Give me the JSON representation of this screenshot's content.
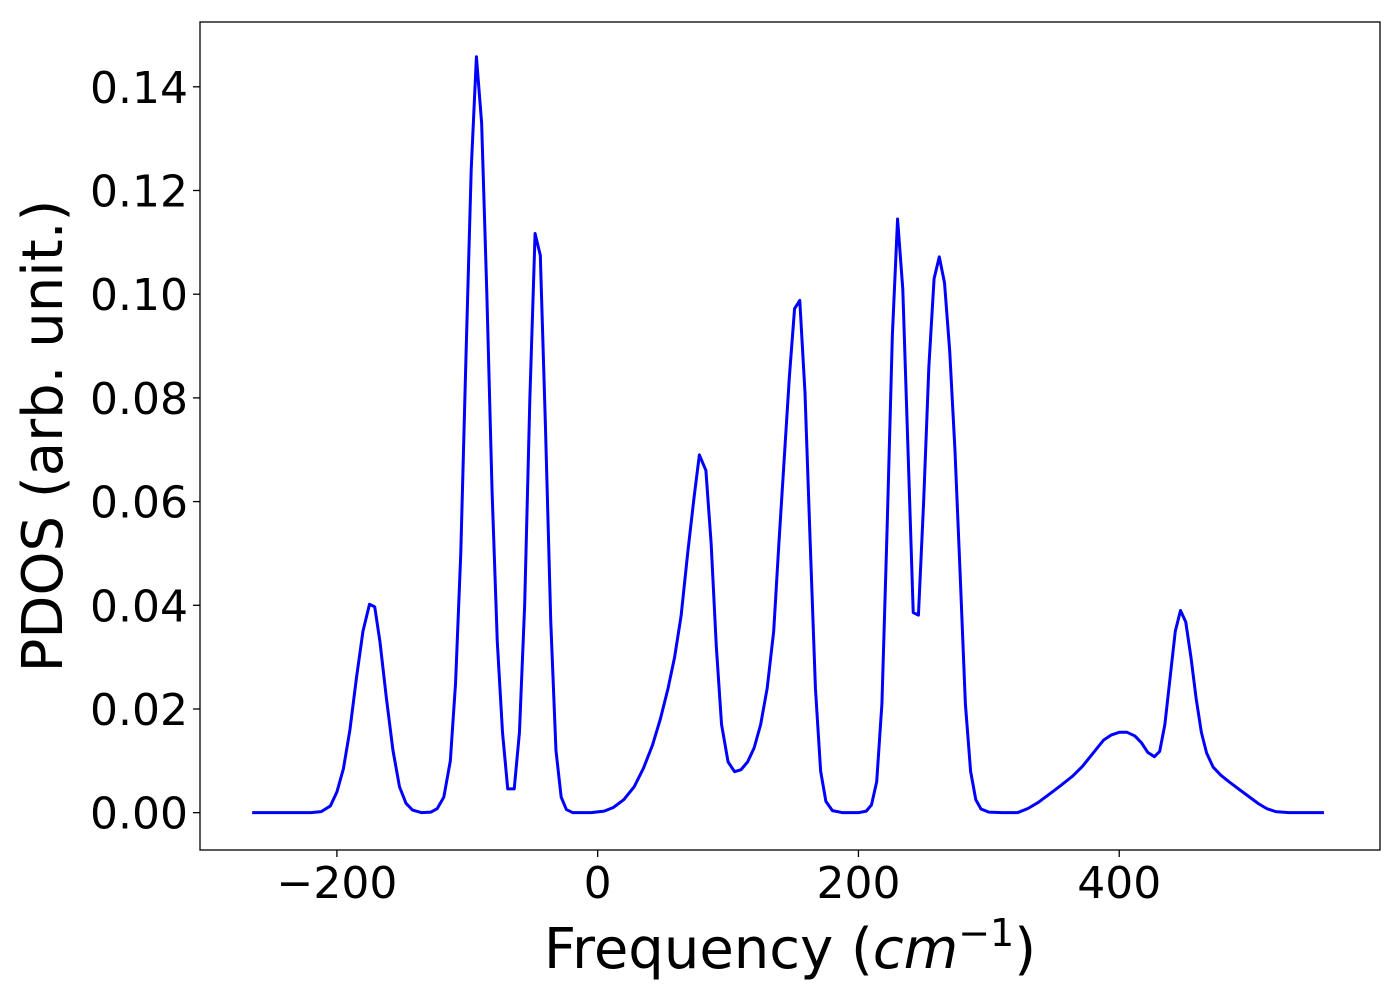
{
  "chart_data": {
    "type": "line",
    "title": "",
    "xlabel": "Frequency",
    "xlabel_unit": "cm",
    "xlabel_unit_exponent": "−1",
    "ylabel": "PDOS (arb. unit.)",
    "xlim": [
      -305,
      600
    ],
    "ylim": [
      -0.0072,
      0.1525
    ],
    "x_ticks": [
      -200,
      0,
      200,
      400
    ],
    "x_tick_labels": [
      "−200",
      "0",
      "200",
      "400"
    ],
    "y_ticks": [
      0.0,
      0.02,
      0.04,
      0.06,
      0.08,
      0.1,
      0.12,
      0.14
    ],
    "y_tick_labels": [
      "0.00",
      "0.02",
      "0.04",
      "0.06",
      "0.08",
      "0.10",
      "0.12",
      "0.14"
    ],
    "grid": false,
    "legend": "none",
    "series": [
      {
        "color": "#0000ff",
        "points": [
          [
            -265,
            0.0
          ],
          [
            -220,
            0.0
          ],
          [
            -212,
            0.0002
          ],
          [
            -205,
            0.0013
          ],
          [
            -200,
            0.004
          ],
          [
            -195,
            0.0085
          ],
          [
            -190,
            0.016
          ],
          [
            -185,
            0.026
          ],
          [
            -180,
            0.035
          ],
          [
            -175,
            0.0402
          ],
          [
            -171,
            0.0397
          ],
          [
            -167,
            0.033
          ],
          [
            -162,
            0.022
          ],
          [
            -157,
            0.012
          ],
          [
            -152,
            0.005
          ],
          [
            -147,
            0.0018
          ],
          [
            -142,
            0.0005
          ],
          [
            -135,
            0.0
          ],
          [
            -128,
            0.0001
          ],
          [
            -123,
            0.0008
          ],
          [
            -118,
            0.003
          ],
          [
            -113,
            0.01
          ],
          [
            -109,
            0.025
          ],
          [
            -105,
            0.05
          ],
          [
            -101,
            0.088
          ],
          [
            -97,
            0.124
          ],
          [
            -93,
            0.1458
          ],
          [
            -89,
            0.133
          ],
          [
            -85,
            0.1
          ],
          [
            -81,
            0.062
          ],
          [
            -77,
            0.033
          ],
          [
            -73,
            0.0155
          ],
          [
            -69,
            0.0046
          ],
          [
            -64,
            0.0046
          ],
          [
            -60,
            0.0155
          ],
          [
            -56,
            0.04
          ],
          [
            -52,
            0.08
          ],
          [
            -48,
            0.1117
          ],
          [
            -44,
            0.1075
          ],
          [
            -40,
            0.074
          ],
          [
            -36,
            0.037
          ],
          [
            -32,
            0.012
          ],
          [
            -28,
            0.003
          ],
          [
            -24,
            0.0006
          ],
          [
            -19,
            0.0
          ],
          [
            -5,
            0.0
          ],
          [
            5,
            0.0003
          ],
          [
            12,
            0.001
          ],
          [
            20,
            0.0025
          ],
          [
            28,
            0.005
          ],
          [
            35,
            0.0085
          ],
          [
            42,
            0.013
          ],
          [
            48,
            0.018
          ],
          [
            54,
            0.024
          ],
          [
            59,
            0.03
          ],
          [
            64,
            0.038
          ],
          [
            69,
            0.05
          ],
          [
            74,
            0.061
          ],
          [
            78,
            0.069
          ],
          [
            83,
            0.066
          ],
          [
            87,
            0.052
          ],
          [
            91,
            0.032
          ],
          [
            95,
            0.017
          ],
          [
            100,
            0.0098
          ],
          [
            105,
            0.0079
          ],
          [
            110,
            0.0083
          ],
          [
            115,
            0.0098
          ],
          [
            120,
            0.0125
          ],
          [
            125,
            0.017
          ],
          [
            130,
            0.024
          ],
          [
            135,
            0.035
          ],
          [
            139,
            0.052
          ],
          [
            143,
            0.068
          ],
          [
            147,
            0.084
          ],
          [
            151,
            0.0972
          ],
          [
            155,
            0.0988
          ],
          [
            159,
            0.081
          ],
          [
            163,
            0.052
          ],
          [
            167,
            0.024
          ],
          [
            171,
            0.008
          ],
          [
            175,
            0.0022
          ],
          [
            180,
            0.0004
          ],
          [
            188,
            0.0
          ],
          [
            200,
            0.0
          ],
          [
            206,
            0.0003
          ],
          [
            210,
            0.0015
          ],
          [
            214,
            0.006
          ],
          [
            218,
            0.021
          ],
          [
            222,
            0.055
          ],
          [
            226,
            0.092
          ],
          [
            230,
            0.1145
          ],
          [
            234,
            0.101
          ],
          [
            238,
            0.07
          ],
          [
            242,
            0.0386
          ],
          [
            246,
            0.0381
          ],
          [
            250,
            0.06
          ],
          [
            254,
            0.086
          ],
          [
            258,
            0.103
          ],
          [
            262,
            0.1072
          ],
          [
            266,
            0.1022
          ],
          [
            270,
            0.089
          ],
          [
            274,
            0.07
          ],
          [
            278,
            0.046
          ],
          [
            282,
            0.021
          ],
          [
            286,
            0.008
          ],
          [
            290,
            0.0025
          ],
          [
            294,
            0.0007
          ],
          [
            300,
            0.0001
          ],
          [
            310,
            0.0
          ],
          [
            322,
            0.0
          ],
          [
            330,
            0.0008
          ],
          [
            338,
            0.002
          ],
          [
            346,
            0.0035
          ],
          [
            355,
            0.0052
          ],
          [
            364,
            0.007
          ],
          [
            372,
            0.009
          ],
          [
            380,
            0.0115
          ],
          [
            388,
            0.014
          ],
          [
            394,
            0.015
          ],
          [
            400,
            0.0155
          ],
          [
            406,
            0.0155
          ],
          [
            412,
            0.0148
          ],
          [
            417,
            0.0135
          ],
          [
            422,
            0.0116
          ],
          [
            427,
            0.0108
          ],
          [
            431,
            0.0118
          ],
          [
            435,
            0.017
          ],
          [
            439,
            0.026
          ],
          [
            443,
            0.035
          ],
          [
            447,
            0.039
          ],
          [
            451,
            0.0368
          ],
          [
            455,
            0.03
          ],
          [
            459,
            0.022
          ],
          [
            463,
            0.0155
          ],
          [
            467,
            0.0115
          ],
          [
            472,
            0.0088
          ],
          [
            478,
            0.0072
          ],
          [
            485,
            0.0058
          ],
          [
            493,
            0.0043
          ],
          [
            500,
            0.003
          ],
          [
            507,
            0.0017
          ],
          [
            513,
            0.0008
          ],
          [
            520,
            0.0002
          ],
          [
            530,
            0.0
          ],
          [
            557,
            0.0
          ]
        ]
      }
    ]
  }
}
